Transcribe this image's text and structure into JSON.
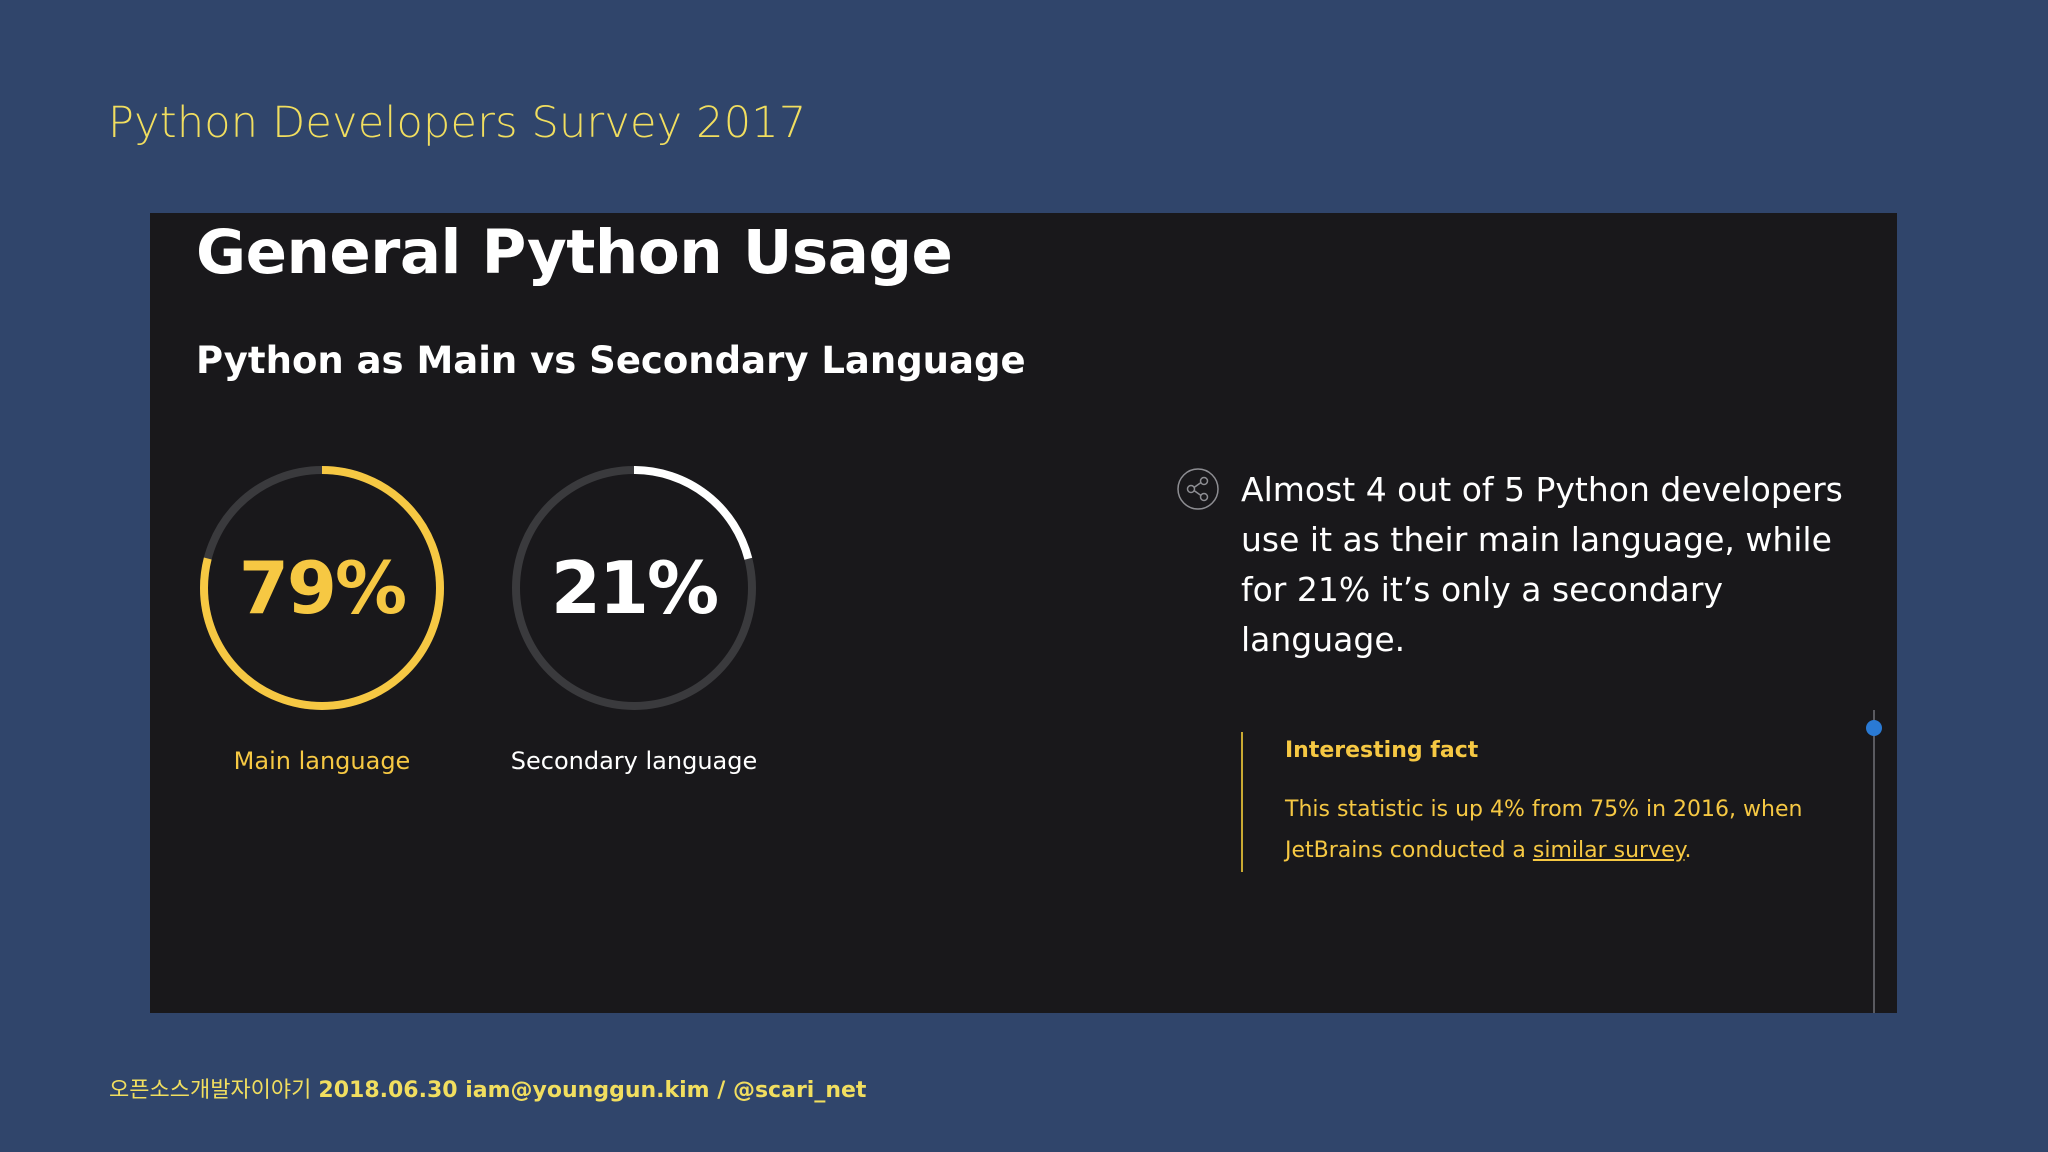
{
  "slide": {
    "title": "Python Developers Survey 2017",
    "footer": {
      "prefix": "오픈소스개발자이야기",
      "details": "2018.06.30 iam@younggun.kim / @scari_net"
    }
  },
  "panel": {
    "heading": "General Python Usage",
    "subheading": "Python as Main vs Secondary Language",
    "headline": "Almost 4 out of 5 Python developers use it as their main language, while for 21% it’s only a secondary language.",
    "share_icon": "share-icon",
    "fact": {
      "title": "Interesting fact",
      "text_before_link": "This statistic is up 4% from 75% in 2016, when JetBrains conducted a ",
      "link_text": "similar survey",
      "text_after_link": "."
    }
  },
  "chart_data": {
    "type": "pie",
    "title": "Python as Main vs Secondary Language",
    "slices": [
      {
        "label": "Main language",
        "value": 79,
        "display": "79%",
        "color": "#f6c843"
      },
      {
        "label": "Secondary language",
        "value": 21,
        "display": "21%",
        "color": "#ffffff"
      }
    ],
    "track_color": "#3a3a3d"
  }
}
